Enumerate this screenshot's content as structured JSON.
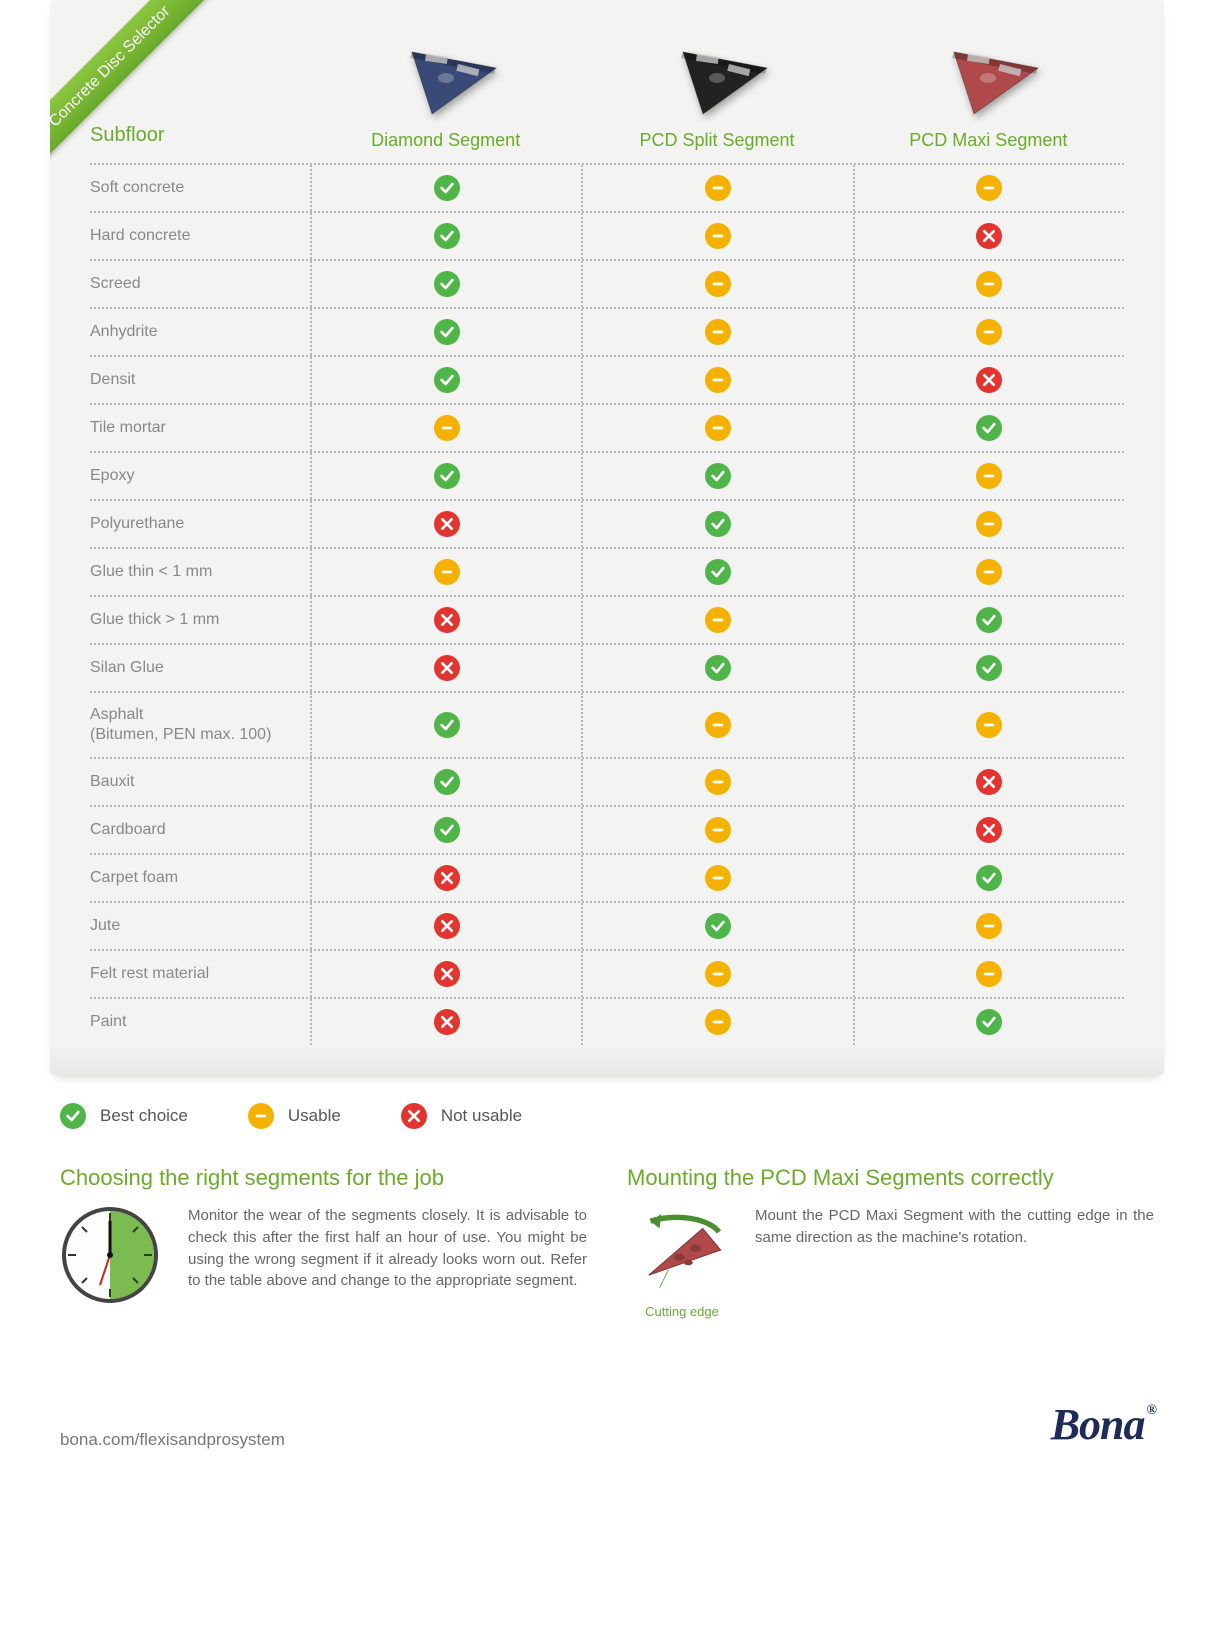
{
  "ribbon": {
    "label": "Concrete Disc Selector"
  },
  "colors": {
    "accent_green": "#6aab2b",
    "best": "#4fb548",
    "usable": "#f5b100",
    "not_usable": "#e3342f",
    "text_muted": "#888888",
    "brand_navy": "#1e2a5a",
    "card_bg": "#f3f3f1"
  },
  "table": {
    "subfloor_header": "Subfloor",
    "columns": [
      {
        "label": "Diamond Segment",
        "disc_color": "#3a4a78"
      },
      {
        "label": "PCD Split Segment",
        "disc_color": "#222222"
      },
      {
        "label": "PCD Maxi Segment",
        "disc_color": "#b04a4a"
      }
    ],
    "rows": [
      {
        "subfloor": "Soft concrete",
        "values": [
          "best",
          "usable",
          "usable"
        ]
      },
      {
        "subfloor": "Hard concrete",
        "values": [
          "best",
          "usable",
          "no"
        ]
      },
      {
        "subfloor": "Screed",
        "values": [
          "best",
          "usable",
          "usable"
        ]
      },
      {
        "subfloor": "Anhydrite",
        "values": [
          "best",
          "usable",
          "usable"
        ]
      },
      {
        "subfloor": "Densit",
        "values": [
          "best",
          "usable",
          "no"
        ]
      },
      {
        "subfloor": "Tile mortar",
        "values": [
          "usable",
          "usable",
          "best"
        ]
      },
      {
        "subfloor": "Epoxy",
        "values": [
          "best",
          "best",
          "usable"
        ]
      },
      {
        "subfloor": "Polyurethane",
        "values": [
          "no",
          "best",
          "usable"
        ]
      },
      {
        "subfloor": "Glue thin < 1 mm",
        "values": [
          "usable",
          "best",
          "usable"
        ]
      },
      {
        "subfloor": "Glue thick > 1 mm",
        "values": [
          "no",
          "usable",
          "best"
        ]
      },
      {
        "subfloor": "Silan Glue",
        "values": [
          "no",
          "best",
          "best"
        ]
      },
      {
        "subfloor": "Asphalt\n(Bitumen, PEN max. 100)",
        "values": [
          "best",
          "usable",
          "usable"
        ]
      },
      {
        "subfloor": "Bauxit",
        "values": [
          "best",
          "usable",
          "no"
        ]
      },
      {
        "subfloor": "Cardboard",
        "values": [
          "best",
          "usable",
          "no"
        ]
      },
      {
        "subfloor": "Carpet foam",
        "values": [
          "no",
          "usable",
          "best"
        ]
      },
      {
        "subfloor": "Jute",
        "values": [
          "no",
          "best",
          "usable"
        ]
      },
      {
        "subfloor": "Felt rest material",
        "values": [
          "no",
          "usable",
          "usable"
        ]
      },
      {
        "subfloor": "Paint",
        "values": [
          "no",
          "usable",
          "best"
        ]
      }
    ]
  },
  "legend": {
    "best": "Best choice",
    "usable": "Usable",
    "no": "Not usable"
  },
  "info": {
    "left": {
      "heading": "Choosing the right segments for the job",
      "text": "Monitor the wear of the segments closely. It is advisable to check this after the first half an hour of use. You might be using the wrong segment if it already looks worn out. Refer to the table above and change to the appropriate segment."
    },
    "right": {
      "heading": "Mounting the PCD Maxi Segments correctly",
      "text": "Mount the PCD Maxi Segment with the cutting edge in the same direction as the machine's rotation.",
      "cutting_label": "Cutting edge"
    }
  },
  "footer": {
    "url": "bona.com/flexisandprosystem",
    "brand": "Bona",
    "reg": "®"
  }
}
